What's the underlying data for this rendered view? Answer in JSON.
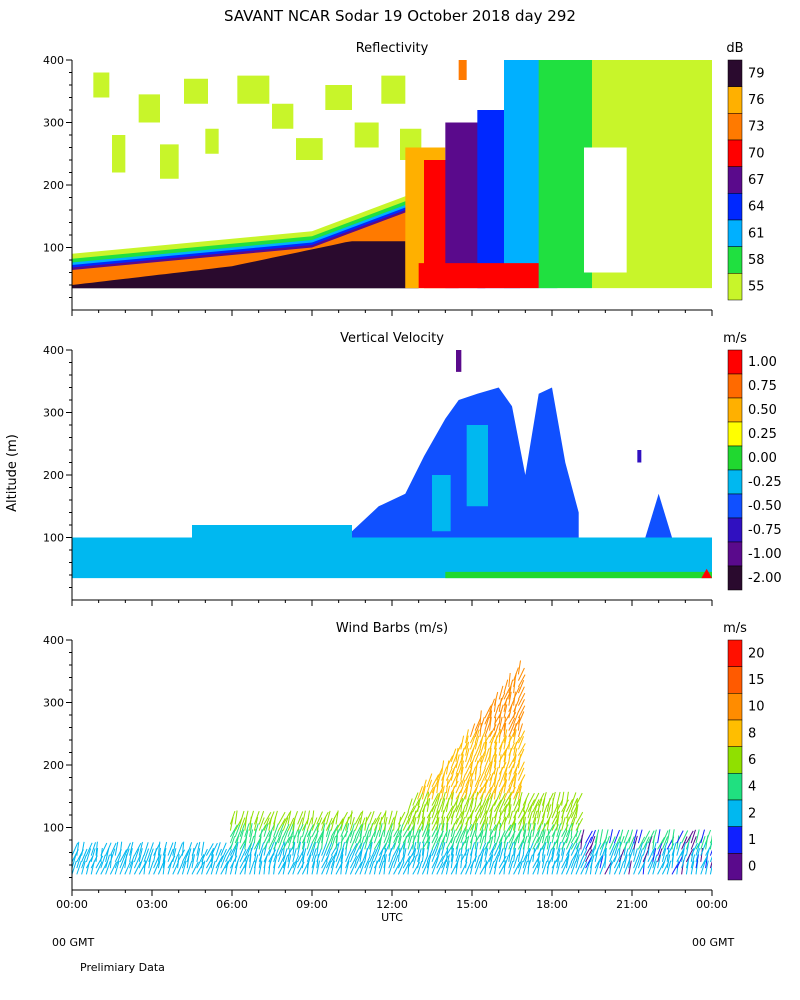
{
  "header": {
    "title": "SAVANT   NCAR Sodar   19 October 2018   day 292"
  },
  "footer": {
    "left_gmt": "00 GMT",
    "right_gmt": "00 GMT",
    "note": "Prelimiary Data"
  },
  "shared": {
    "ylabel": "Altitude (m)",
    "xlabel": "UTC",
    "xticks": [
      "00:00",
      "03:00",
      "06:00",
      "09:00",
      "12:00",
      "15:00",
      "18:00",
      "21:00",
      "00:00"
    ],
    "ytick_labels": [
      "100",
      "200",
      "300",
      "400"
    ]
  },
  "chart_data": [
    {
      "type": "heatmap",
      "title": "Reflectivity",
      "unit": "dB",
      "x_range_hours": [
        0,
        24
      ],
      "ylim": [
        0,
        400
      ],
      "yticks": [
        100,
        200,
        300,
        400
      ],
      "colorbar": {
        "labels": [
          "79",
          "76",
          "73",
          "70",
          "67",
          "64",
          "61",
          "58",
          "55"
        ],
        "colors": [
          "#2a0a2e",
          "#ffb000",
          "#ff7a00",
          "#ff0000",
          "#5a0a8c",
          "#0028ff",
          "#00b0ff",
          "#20e040",
          "#c8f52a"
        ]
      }
    },
    {
      "type": "heatmap",
      "title": "Vertical Velocity",
      "unit": "m/s",
      "x_range_hours": [
        0,
        24
      ],
      "ylim": [
        0,
        400
      ],
      "yticks": [
        100,
        200,
        300,
        400
      ],
      "colorbar": {
        "labels": [
          "1.00",
          "0.75",
          "0.50",
          "0.25",
          "0.00",
          "-0.25",
          "-0.50",
          "-0.75",
          "-1.00",
          "-2.00"
        ],
        "colors": [
          "#ff0000",
          "#ff6a00",
          "#ffb000",
          "#ffff00",
          "#20d830",
          "#00b8f0",
          "#1050ff",
          "#3010c0",
          "#5a0a8c",
          "#2a0a2e"
        ]
      }
    },
    {
      "type": "scatter",
      "title": "Wind Barbs (m/s)",
      "unit": "m/s",
      "x_range_hours": [
        0,
        24
      ],
      "ylim": [
        0,
        400
      ],
      "yticks": [
        100,
        200,
        300,
        400
      ],
      "colorbar": {
        "labels": [
          "20",
          "15",
          "10",
          "8",
          "6",
          "4",
          "2",
          "1",
          "0"
        ],
        "colors": [
          "#ff1000",
          "#ff5a00",
          "#ff8c00",
          "#ffbe00",
          "#90e000",
          "#20e080",
          "#00b8f0",
          "#1020ff",
          "#5a0a8c"
        ]
      }
    }
  ]
}
